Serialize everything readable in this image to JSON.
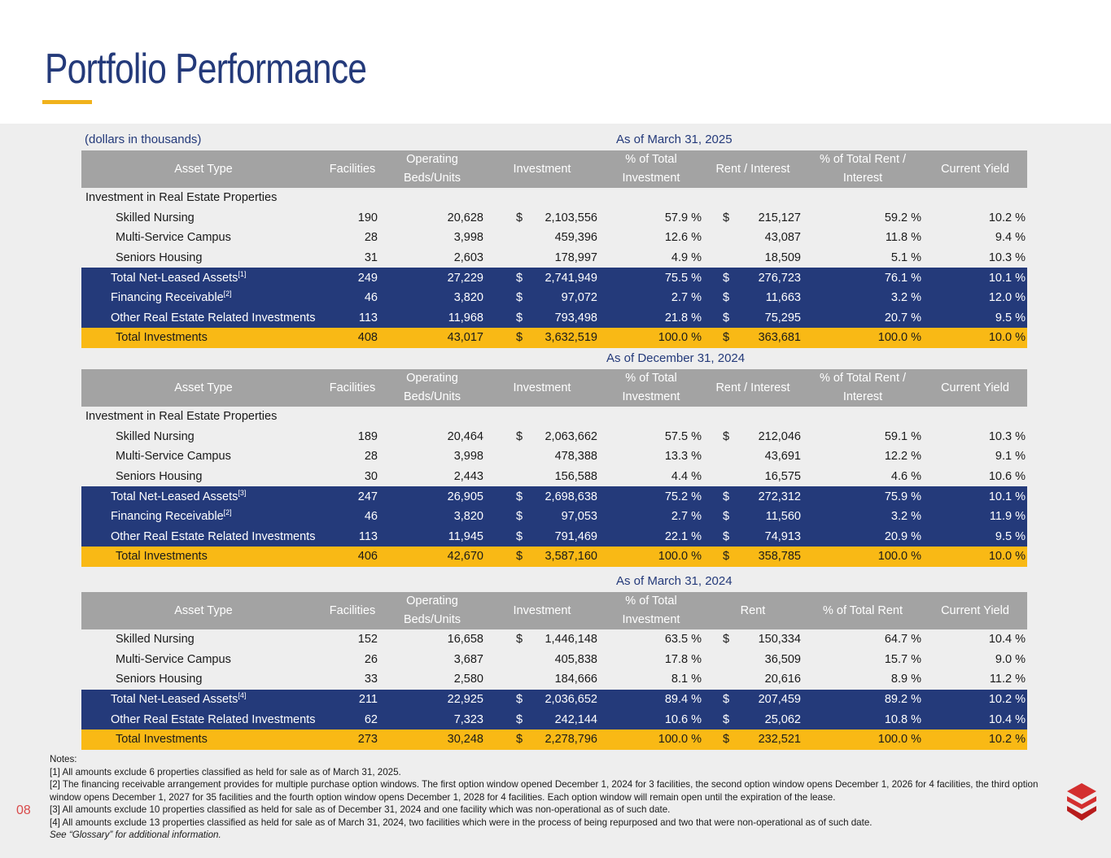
{
  "title": "Portfolio Performance",
  "units_note": "(dollars in thousands)",
  "headers_a": [
    "Asset Type",
    "Facilities",
    "Operating Beds/Units",
    "Investment",
    "% of Total Investment",
    "Rent / Interest",
    "% of Total Rent / Interest",
    "Current Yield"
  ],
  "headers_c": [
    "Asset Type",
    "Facilities",
    "Operating Beds/Units",
    "Investment",
    "% of Total Investment",
    "Rent",
    "% of Total Rent",
    "Current Yield"
  ],
  "sections": [
    {
      "title": "As of March 31, 2025",
      "group_label": "Investment in Real Estate Properties",
      "rows": [
        {
          "label": "Skilled Nursing",
          "sup": "",
          "style": "plain",
          "facilities": "190",
          "beds": "20,628",
          "inv_dollar": "$",
          "investment": "2,103,556",
          "pct_inv": "57.9 %",
          "rent_dollar": "$",
          "rent": "215,127",
          "pct_rent": "59.2 %",
          "yield": "10.2 %"
        },
        {
          "label": "Multi-Service Campus",
          "sup": "",
          "style": "plain",
          "facilities": "28",
          "beds": "3,998",
          "inv_dollar": "",
          "investment": "459,396",
          "pct_inv": "12.6 %",
          "rent_dollar": "",
          "rent": "43,087",
          "pct_rent": "11.8 %",
          "yield": "9.4 %"
        },
        {
          "label": "Seniors Housing",
          "sup": "",
          "style": "plain",
          "facilities": "31",
          "beds": "2,603",
          "inv_dollar": "",
          "investment": "178,997",
          "pct_inv": "4.9 %",
          "rent_dollar": "",
          "rent": "18,509",
          "pct_rent": "5.1 %",
          "yield": "10.3 %"
        },
        {
          "label": "Total Net-Leased Assets",
          "sup": "[1]",
          "style": "navy",
          "facilities": "249",
          "beds": "27,229",
          "inv_dollar": "$",
          "investment": "2,741,949",
          "pct_inv": "75.5 %",
          "rent_dollar": "$",
          "rent": "276,723",
          "pct_rent": "76.1 %",
          "yield": "10.1 %"
        },
        {
          "label": "Financing Receivable",
          "sup": "[2]",
          "style": "navy",
          "facilities": "46",
          "beds": "3,820",
          "inv_dollar": "$",
          "investment": "97,072",
          "pct_inv": "2.7 %",
          "rent_dollar": "$",
          "rent": "11,663",
          "pct_rent": "3.2 %",
          "yield": "12.0 %"
        },
        {
          "label": "Other Real Estate Related Investments",
          "sup": "",
          "style": "navy",
          "facilities": "113",
          "beds": "11,968",
          "inv_dollar": "$",
          "investment": "793,498",
          "pct_inv": "21.8 %",
          "rent_dollar": "$",
          "rent": "75,295",
          "pct_rent": "20.7 %",
          "yield": "9.5 %"
        },
        {
          "label": "Total Investments",
          "sup": "",
          "style": "gold",
          "facilities": "408",
          "beds": "43,017",
          "inv_dollar": "$",
          "investment": "3,632,519",
          "pct_inv": "100.0 %",
          "rent_dollar": "$",
          "rent": "363,681",
          "pct_rent": "100.0 %",
          "yield": "10.0 %"
        }
      ]
    },
    {
      "title": "As of December 31, 2024",
      "group_label": "Investment in Real Estate Properties",
      "rows": [
        {
          "label": "Skilled Nursing",
          "sup": "",
          "style": "plain",
          "facilities": "189",
          "beds": "20,464",
          "inv_dollar": "$",
          "investment": "2,063,662",
          "pct_inv": "57.5 %",
          "rent_dollar": "$",
          "rent": "212,046",
          "pct_rent": "59.1 %",
          "yield": "10.3 %"
        },
        {
          "label": "Multi-Service Campus",
          "sup": "",
          "style": "plain",
          "facilities": "28",
          "beds": "3,998",
          "inv_dollar": "",
          "investment": "478,388",
          "pct_inv": "13.3 %",
          "rent_dollar": "",
          "rent": "43,691",
          "pct_rent": "12.2 %",
          "yield": "9.1 %"
        },
        {
          "label": "Seniors Housing",
          "sup": "",
          "style": "plain",
          "facilities": "30",
          "beds": "2,443",
          "inv_dollar": "",
          "investment": "156,588",
          "pct_inv": "4.4 %",
          "rent_dollar": "",
          "rent": "16,575",
          "pct_rent": "4.6 %",
          "yield": "10.6 %"
        },
        {
          "label": "Total Net-Leased Assets",
          "sup": "[3]",
          "style": "navy",
          "facilities": "247",
          "beds": "26,905",
          "inv_dollar": "$",
          "investment": "2,698,638",
          "pct_inv": "75.2 %",
          "rent_dollar": "$",
          "rent": "272,312",
          "pct_rent": "75.9 %",
          "yield": "10.1 %"
        },
        {
          "label": "Financing Receivable",
          "sup": "[2]",
          "style": "navy",
          "facilities": "46",
          "beds": "3,820",
          "inv_dollar": "$",
          "investment": "97,053",
          "pct_inv": "2.7 %",
          "rent_dollar": "$",
          "rent": "11,560",
          "pct_rent": "3.2 %",
          "yield": "11.9 %"
        },
        {
          "label": "Other Real Estate Related Investments",
          "sup": "",
          "style": "navy",
          "facilities": "113",
          "beds": "11,945",
          "inv_dollar": "$",
          "investment": "791,469",
          "pct_inv": "22.1 %",
          "rent_dollar": "$",
          "rent": "74,913",
          "pct_rent": "20.9 %",
          "yield": "9.5 %"
        },
        {
          "label": "Total Investments",
          "sup": "",
          "style": "gold",
          "facilities": "406",
          "beds": "42,670",
          "inv_dollar": "$",
          "investment": "3,587,160",
          "pct_inv": "100.0 %",
          "rent_dollar": "$",
          "rent": "358,785",
          "pct_rent": "100.0 %",
          "yield": "10.0 %"
        }
      ]
    },
    {
      "title": "As of March 31, 2024",
      "group_label": "",
      "rows": [
        {
          "label": "Skilled Nursing",
          "sup": "",
          "style": "plain",
          "facilities": "152",
          "beds": "16,658",
          "inv_dollar": "$",
          "investment": "1,446,148",
          "pct_inv": "63.5 %",
          "rent_dollar": "$",
          "rent": "150,334",
          "pct_rent": "64.7 %",
          "yield": "10.4 %"
        },
        {
          "label": "Multi-Service Campus",
          "sup": "",
          "style": "plain",
          "facilities": "26",
          "beds": "3,687",
          "inv_dollar": "",
          "investment": "405,838",
          "pct_inv": "17.8 %",
          "rent_dollar": "",
          "rent": "36,509",
          "pct_rent": "15.7 %",
          "yield": "9.0 %"
        },
        {
          "label": "Seniors Housing",
          "sup": "",
          "style": "plain",
          "facilities": "33",
          "beds": "2,580",
          "inv_dollar": "",
          "investment": "184,666",
          "pct_inv": "8.1 %",
          "rent_dollar": "",
          "rent": "20,616",
          "pct_rent": "8.9 %",
          "yield": "11.2 %"
        },
        {
          "label": "Total Net-Leased Assets",
          "sup": "[4]",
          "style": "navy",
          "facilities": "211",
          "beds": "22,925",
          "inv_dollar": "$",
          "investment": "2,036,652",
          "pct_inv": "89.4 %",
          "rent_dollar": "$",
          "rent": "207,459",
          "pct_rent": "89.2 %",
          "yield": "10.2 %"
        },
        {
          "label": "Other Real Estate Related Investments",
          "sup": "",
          "style": "navy",
          "facilities": "62",
          "beds": "7,323",
          "inv_dollar": "$",
          "investment": "242,144",
          "pct_inv": "10.6 %",
          "rent_dollar": "$",
          "rent": "25,062",
          "pct_rent": "10.8 %",
          "yield": "10.4 %"
        },
        {
          "label": "Total Investments",
          "sup": "",
          "style": "gold",
          "facilities": "273",
          "beds": "30,248",
          "inv_dollar": "$",
          "investment": "2,278,796",
          "pct_inv": "100.0 %",
          "rent_dollar": "$",
          "rent": "232,521",
          "pct_rent": "100.0 %",
          "yield": "10.2 %"
        }
      ]
    }
  ],
  "notes": {
    "heading": "Notes:",
    "n1": "[1] All amounts exclude 6 properties classified as held for sale as of March 31, 2025.",
    "n2": "[2] The financing receivable arrangement provides for multiple purchase option windows. The first option window opened December 1, 2024 for 3 facilities, the second option window opens December 1, 2026 for 4 facilities, the third option window opens December 1, 2027 for 35 facilities and the fourth option window opens December 1, 2028 for 4 facilities. Each option window will remain open until the expiration of the lease.",
    "n3": "[3] All amounts exclude 10 properties classified as held for sale as of December 31, 2024 and one facility which was non-operational as of such date.",
    "n4": "[4] All amounts exclude 13 properties classified as held for sale as of March 31, 2024, two facilities which were in the process of being repurposed and two that were non-operational as of such date.",
    "glossary": "See “Glossary” for additional information."
  },
  "page_number": "08",
  "colors": {
    "navy": "#243a7a",
    "gold": "#f9b915",
    "header_gray": "#a3a3a3",
    "accent_red": "#d32f2f"
  }
}
